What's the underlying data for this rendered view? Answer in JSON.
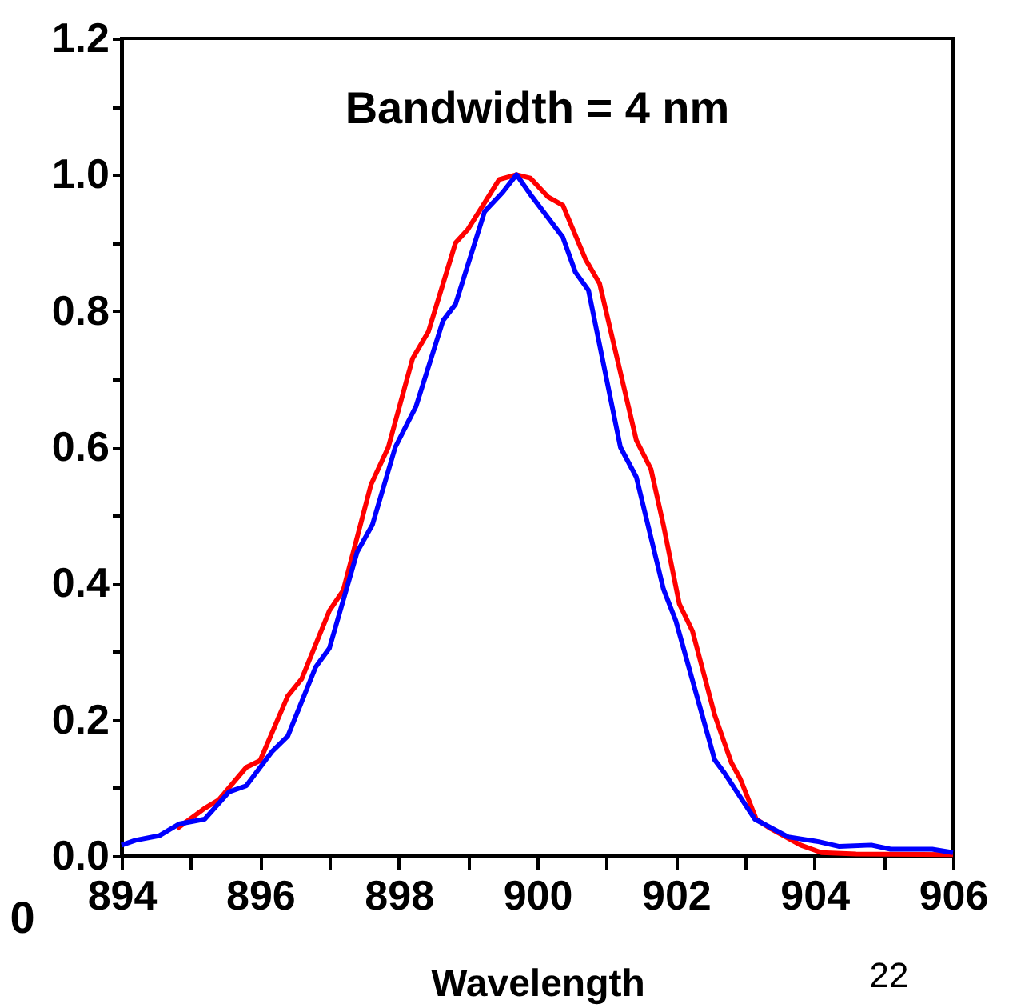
{
  "chart_data": {
    "type": "line",
    "title": "Bandwidth = 4 nm",
    "xlabel": "Wavelength",
    "annotations": [
      "0",
      "22"
    ],
    "xlim": [
      894,
      906
    ],
    "ylim": [
      0,
      1.2
    ],
    "xticks": [
      894,
      {
        "value": 895,
        "label": null
      },
      896,
      {
        "value": 897,
        "label": null
      },
      898,
      {
        "value": 899,
        "label": null
      },
      900,
      {
        "value": 901,
        "label": null
      },
      902,
      {
        "value": 903,
        "label": null
      },
      904,
      {
        "value": 905,
        "label": null
      },
      906
    ],
    "yticks": [
      {
        "value": 0,
        "label": "0.0"
      },
      {
        "value": 0.1,
        "label": null
      },
      0.2,
      {
        "value": 0.3,
        "label": null
      },
      0.4,
      {
        "value": 0.5,
        "label": null
      },
      0.6,
      {
        "value": 0.7,
        "label": null
      },
      0.8,
      {
        "value": 0.9,
        "label": null
      },
      {
        "value": 1.0,
        "label": "1.0"
      },
      {
        "value": 1.1,
        "label": null
      },
      1.2
    ],
    "grid": false,
    "legend": false,
    "marker": "none",
    "line_style": "solid",
    "series": [
      {
        "color": "#ff0000",
        "x": [
          894.8,
          895.2,
          895.4,
          895.8,
          896.0,
          896.4,
          896.6,
          897.0,
          897.2,
          897.6,
          897.85,
          898.2,
          898.43,
          898.82,
          899.0,
          899.45,
          899.7,
          899.9,
          900.16,
          900.37,
          900.7,
          900.9,
          901.43,
          901.64,
          901.82,
          902.05,
          902.24,
          902.56,
          902.8,
          902.93,
          903.16,
          903.37,
          903.8,
          904.1,
          904.6,
          906
        ],
        "values": [
          0.04,
          0.07,
          0.082,
          0.13,
          0.14,
          0.235,
          0.26,
          0.36,
          0.39,
          0.545,
          0.6,
          0.73,
          0.77,
          0.9,
          0.92,
          0.993,
          1.0,
          0.995,
          0.967,
          0.955,
          0.875,
          0.84,
          0.61,
          0.568,
          0.486,
          0.37,
          0.33,
          0.207,
          0.137,
          0.113,
          0.054,
          0.04,
          0.016,
          0.005,
          0.003,
          0.002
        ]
      },
      {
        "color": "#0000ff",
        "x": [
          894,
          894.2,
          894.55,
          894.83,
          895.2,
          895.55,
          895.8,
          896.17,
          896.4,
          896.8,
          897.0,
          897.4,
          897.62,
          897.95,
          898.25,
          898.64,
          898.82,
          899.24,
          899.5,
          899.7,
          899.93,
          900.37,
          900.55,
          900.74,
          901.2,
          901.43,
          901.82,
          902.0,
          902.56,
          902.7,
          903.14,
          903.62,
          904.06,
          904.36,
          904.82,
          905.1,
          905.7,
          906
        ],
        "values": [
          0.016,
          0.023,
          0.03,
          0.047,
          0.054,
          0.094,
          0.103,
          0.153,
          0.176,
          0.277,
          0.305,
          0.446,
          0.486,
          0.6,
          0.66,
          0.786,
          0.81,
          0.946,
          0.974,
          1.0,
          0.967,
          0.908,
          0.857,
          0.83,
          0.6,
          0.556,
          0.392,
          0.345,
          0.141,
          0.122,
          0.054,
          0.028,
          0.021,
          0.014,
          0.016,
          0.01,
          0.01,
          0.005
        ]
      }
    ]
  }
}
